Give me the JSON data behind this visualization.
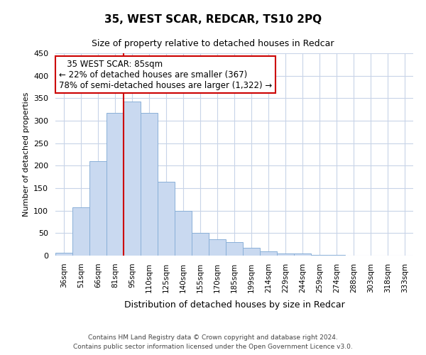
{
  "title": "35, WEST SCAR, REDCAR, TS10 2PQ",
  "subtitle": "Size of property relative to detached houses in Redcar",
  "xlabel": "Distribution of detached houses by size in Redcar",
  "ylabel": "Number of detached properties",
  "bar_color": "#c9d9f0",
  "bar_edge_color": "#8ab0d8",
  "categories": [
    "36sqm",
    "51sqm",
    "66sqm",
    "81sqm",
    "95sqm",
    "110sqm",
    "125sqm",
    "140sqm",
    "155sqm",
    "170sqm",
    "185sqm",
    "199sqm",
    "214sqm",
    "229sqm",
    "244sqm",
    "259sqm",
    "274sqm",
    "288sqm",
    "303sqm",
    "318sqm",
    "333sqm"
  ],
  "values": [
    7,
    107,
    210,
    318,
    343,
    318,
    165,
    99,
    50,
    37,
    30,
    18,
    9,
    5,
    5,
    2,
    1,
    0,
    0,
    0,
    0
  ],
  "ylim": [
    0,
    450
  ],
  "yticks": [
    0,
    50,
    100,
    150,
    200,
    250,
    300,
    350,
    400,
    450
  ],
  "red_line_x": 3.5,
  "annotation_title": "35 WEST SCAR: 85sqm",
  "annotation_line1": "← 22% of detached houses are smaller (367)",
  "annotation_line2": "78% of semi-detached houses are larger (1,322) →",
  "footer_line1": "Contains HM Land Registry data © Crown copyright and database right 2024.",
  "footer_line2": "Contains public sector information licensed under the Open Government Licence v3.0.",
  "background_color": "#ffffff",
  "grid_color": "#c8d4e8"
}
